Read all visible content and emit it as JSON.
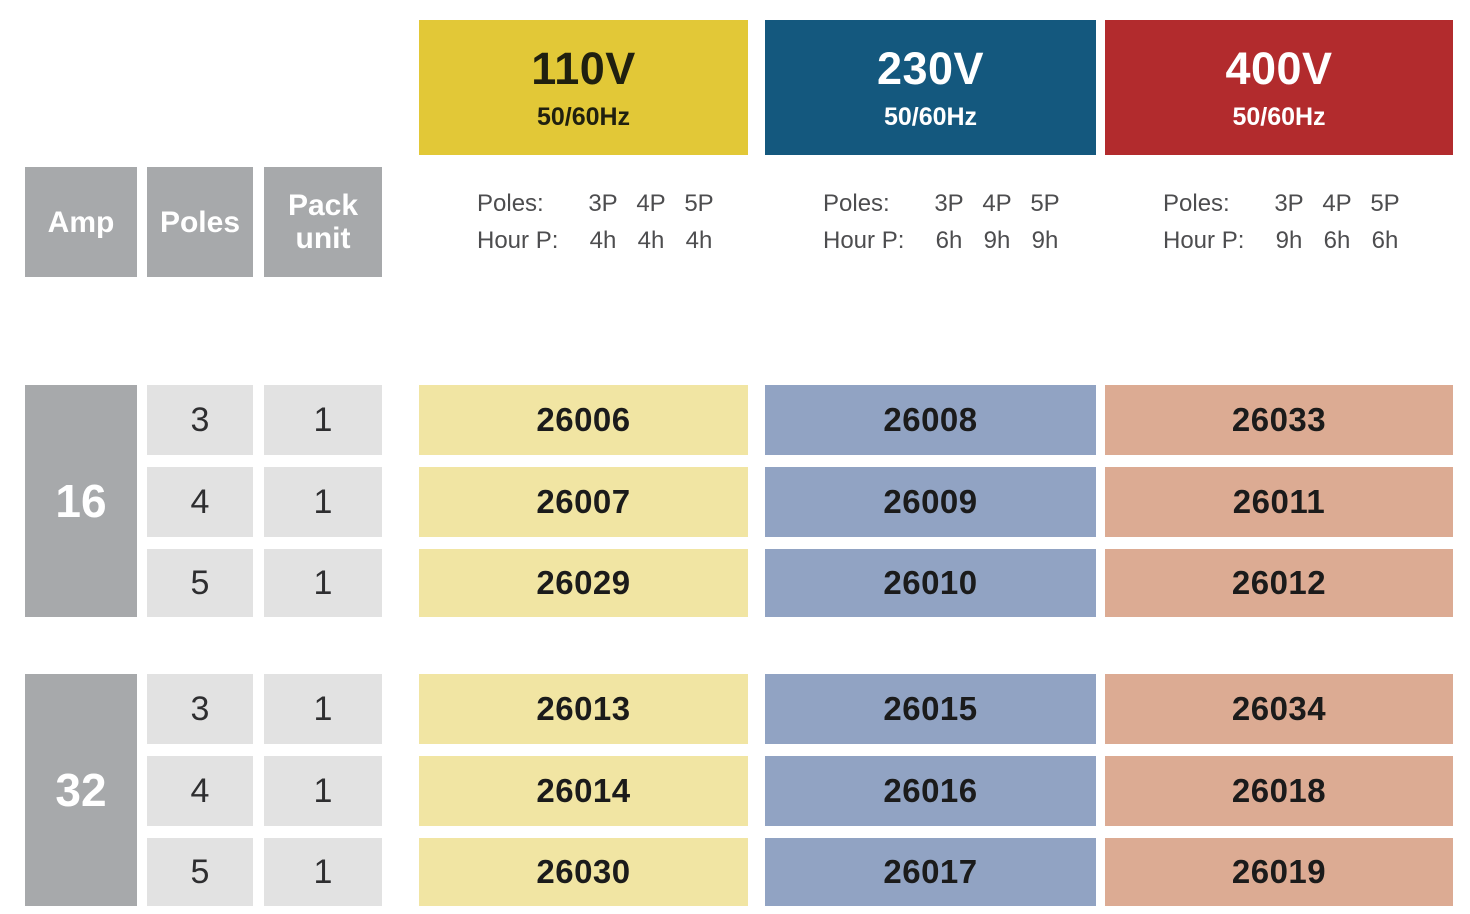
{
  "colors": {
    "v110_header": "#e2c837",
    "v110_fg": "#20200f",
    "v110_cell": "#f1e5a3",
    "v230_header": "#14587e",
    "v230_fg": "#ffffff",
    "v230_cell": "#91a3c3",
    "v400_header": "#b22b2d",
    "v400_fg": "#ffffff",
    "v400_cell": "#dcab93",
    "header_gray": "#a7a9ab",
    "cell_gray": "#e2e2e2",
    "info_text": "#4d4d4f",
    "text_dark": "#1b1b1b"
  },
  "row_headers": {
    "amp": "Amp",
    "poles": "Poles",
    "pack_unit": "Pack unit"
  },
  "voltages": [
    {
      "label": "110V",
      "frequency": "50/60Hz",
      "poles_label": "Poles:",
      "hour_label": "Hour P:",
      "poles": [
        "3P",
        "4P",
        "5P"
      ],
      "hours": [
        "4h",
        "4h",
        "4h"
      ]
    },
    {
      "label": "230V",
      "frequency": "50/60Hz",
      "poles_label": "Poles:",
      "hour_label": "Hour P:",
      "poles": [
        "3P",
        "4P",
        "5P"
      ],
      "hours": [
        "6h",
        "9h",
        "9h"
      ]
    },
    {
      "label": "400V",
      "frequency": "50/60Hz",
      "poles_label": "Poles:",
      "hour_label": "Hour P:",
      "poles": [
        "3P",
        "4P",
        "5P"
      ],
      "hours": [
        "9h",
        "6h",
        "6h"
      ]
    }
  ],
  "groups": [
    {
      "amp": "16",
      "rows": [
        {
          "poles": "3",
          "pack": "1",
          "codes": [
            "26006",
            "26008",
            "26033"
          ]
        },
        {
          "poles": "4",
          "pack": "1",
          "codes": [
            "26007",
            "26009",
            "26011"
          ]
        },
        {
          "poles": "5",
          "pack": "1",
          "codes": [
            "26029",
            "26010",
            "26012"
          ]
        }
      ]
    },
    {
      "amp": "32",
      "rows": [
        {
          "poles": "3",
          "pack": "1",
          "codes": [
            "26013",
            "26015",
            "26034"
          ]
        },
        {
          "poles": "4",
          "pack": "1",
          "codes": [
            "26014",
            "26016",
            "26018"
          ]
        },
        {
          "poles": "5",
          "pack": "1",
          "codes": [
            "26030",
            "26017",
            "26019"
          ]
        }
      ]
    }
  ]
}
